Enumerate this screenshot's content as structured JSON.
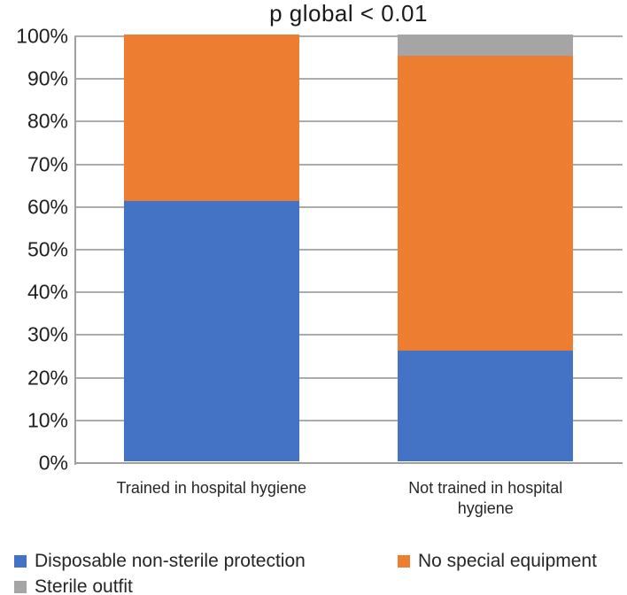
{
  "chart_data": {
    "type": "bar",
    "subtype": "stacked-percent-column",
    "title": "p global < 0.01",
    "categories": [
      "Trained in hospital hygiene",
      "Not trained in hospital hygiene"
    ],
    "series": [
      {
        "name": "Disposable non-sterile protection",
        "color": "#4472C4",
        "values": [
          61,
          26
        ]
      },
      {
        "name": "No special equipment",
        "color": "#ED7D31",
        "values": [
          39,
          69
        ]
      },
      {
        "name": "Sterile outfit",
        "color": "#A5A5A5",
        "values": [
          0,
          5
        ]
      }
    ],
    "xlabel": "",
    "ylabel": "",
    "ylim": [
      0,
      100
    ],
    "ytick_step": 10,
    "ytick_suffix": "%",
    "grid": true,
    "legend_position": "bottom"
  },
  "colors": {
    "gridline": "#ACACAC",
    "axis_line": "#A0A0A0",
    "background": "#FFFFFF",
    "text": "#1F1F1F"
  }
}
